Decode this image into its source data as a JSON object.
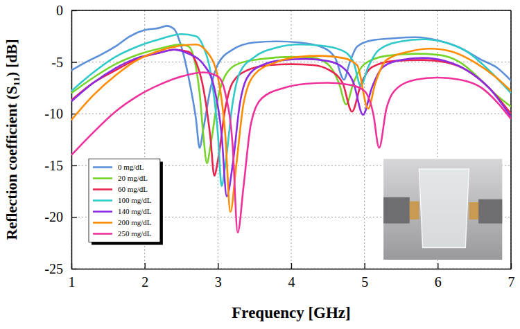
{
  "chart_data": {
    "type": "line",
    "x_label": "Frequency [GHz]",
    "y_label": "Reflection coefficient (S₁₁) [dB]",
    "xlim": [
      1,
      7
    ],
    "xticks": [
      1,
      2,
      3,
      4,
      5,
      6,
      7
    ],
    "ylim": [
      -25,
      0
    ],
    "yticks": [
      -25,
      -20,
      -15,
      -10,
      -5,
      0
    ],
    "grid": true,
    "legend": "lower left",
    "series": [
      {
        "name": "0 mg/dL",
        "color": "#5b8fd9",
        "x": [
          1.0,
          1.2,
          1.4,
          1.6,
          1.8,
          2.0,
          2.2,
          2.3,
          2.4,
          2.5,
          2.6,
          2.7,
          2.75,
          2.8,
          2.9,
          3.0,
          3.2,
          3.5,
          3.8,
          4.1,
          4.4,
          4.6,
          4.72,
          4.8,
          4.9,
          5.1,
          5.4,
          5.7,
          6.0,
          6.3,
          6.6,
          6.8,
          7.0
        ],
        "values": [
          -5.8,
          -5.0,
          -4.3,
          -3.5,
          -2.5,
          -1.9,
          -1.7,
          -1.5,
          -1.8,
          -3.5,
          -6.5,
          -10.5,
          -13.3,
          -11.5,
          -7.5,
          -5.2,
          -3.8,
          -3.1,
          -3.0,
          -3.1,
          -3.5,
          -4.6,
          -6.7,
          -5.0,
          -3.5,
          -2.9,
          -2.7,
          -2.6,
          -2.9,
          -3.6,
          -4.8,
          -5.5,
          -6.8
        ]
      },
      {
        "name": "20 mg/dL",
        "color": "#77d42a",
        "x": [
          1.0,
          1.3,
          1.6,
          1.9,
          2.2,
          2.5,
          2.6,
          2.7,
          2.75,
          2.8,
          2.85,
          2.9,
          3.0,
          3.1,
          3.3,
          3.6,
          4.0,
          4.3,
          4.5,
          4.65,
          4.75,
          4.85,
          5.0,
          5.3,
          5.7,
          6.0,
          6.3,
          6.6,
          6.8,
          7.0
        ],
        "values": [
          -8.0,
          -6.5,
          -5.2,
          -4.3,
          -3.7,
          -3.3,
          -3.5,
          -5.5,
          -8.0,
          -12.0,
          -14.8,
          -13.0,
          -8.5,
          -6.3,
          -5.1,
          -4.7,
          -4.5,
          -4.6,
          -5.2,
          -7.0,
          -9.1,
          -7.0,
          -5.2,
          -4.4,
          -4.2,
          -4.3,
          -5.0,
          -6.8,
          -8.2,
          -9.3
        ]
      },
      {
        "name": "60 mg/dL",
        "color": "#e8244f",
        "x": [
          1.0,
          1.3,
          1.6,
          1.9,
          2.2,
          2.4,
          2.6,
          2.7,
          2.8,
          2.9,
          2.95,
          3.0,
          3.1,
          3.2,
          3.4,
          3.7,
          4.0,
          4.3,
          4.5,
          4.7,
          4.83,
          4.95,
          5.1,
          5.4,
          5.8,
          6.1,
          6.4,
          6.7,
          7.0
        ],
        "values": [
          -8.7,
          -7.0,
          -5.8,
          -4.7,
          -4.1,
          -3.8,
          -4.0,
          -5.0,
          -7.5,
          -12.5,
          -16.0,
          -14.5,
          -9.5,
          -7.0,
          -5.8,
          -5.3,
          -5.2,
          -5.3,
          -5.7,
          -7.0,
          -9.8,
          -7.2,
          -5.5,
          -4.9,
          -4.8,
          -5.0,
          -5.8,
          -7.5,
          -10.0
        ]
      },
      {
        "name": "100 mg/dL",
        "color": "#2ec9c9",
        "x": [
          1.0,
          1.3,
          1.6,
          1.9,
          2.2,
          2.5,
          2.7,
          2.8,
          2.9,
          3.0,
          3.05,
          3.1,
          3.2,
          3.3,
          3.5,
          3.8,
          4.1,
          4.4,
          4.7,
          4.85,
          4.95,
          5.05,
          5.2,
          5.5,
          5.8,
          6.1,
          6.4,
          6.7,
          7.0
        ],
        "values": [
          -7.8,
          -6.0,
          -4.5,
          -3.5,
          -2.8,
          -2.3,
          -2.5,
          -3.5,
          -6.0,
          -12.0,
          -17.0,
          -15.0,
          -9.0,
          -6.0,
          -4.5,
          -3.6,
          -3.3,
          -3.4,
          -3.9,
          -5.0,
          -7.3,
          -5.5,
          -3.8,
          -3.0,
          -2.8,
          -3.1,
          -4.0,
          -5.8,
          -8.0
        ]
      },
      {
        "name": "140 mg/dL",
        "color": "#8b2be2",
        "x": [
          1.0,
          1.3,
          1.6,
          1.9,
          2.2,
          2.4,
          2.6,
          2.8,
          2.95,
          3.05,
          3.12,
          3.2,
          3.3,
          3.4,
          3.6,
          3.9,
          4.2,
          4.5,
          4.7,
          4.85,
          4.98,
          5.1,
          5.25,
          5.5,
          5.8,
          6.1,
          6.4,
          6.7,
          7.0
        ],
        "values": [
          -8.8,
          -7.0,
          -5.6,
          -4.6,
          -4.1,
          -3.8,
          -4.2,
          -5.2,
          -7.5,
          -12.0,
          -18.0,
          -15.0,
          -9.0,
          -6.5,
          -5.3,
          -4.8,
          -4.7,
          -4.9,
          -5.5,
          -7.0,
          -10.1,
          -7.5,
          -5.5,
          -4.8,
          -4.6,
          -4.9,
          -5.8,
          -7.5,
          -10.3
        ]
      },
      {
        "name": "200 mg/dL",
        "color": "#ff8c00",
        "x": [
          1.0,
          1.3,
          1.6,
          1.9,
          2.2,
          2.5,
          2.7,
          2.85,
          3.0,
          3.1,
          3.17,
          3.25,
          3.35,
          3.5,
          3.8,
          4.1,
          4.4,
          4.7,
          4.9,
          5.05,
          5.15,
          5.3,
          5.6,
          5.9,
          6.2,
          6.5,
          6.8,
          7.0
        ],
        "values": [
          -10.6,
          -8.2,
          -6.3,
          -4.8,
          -3.9,
          -3.4,
          -3.3,
          -4.0,
          -6.5,
          -12.0,
          -19.5,
          -15.0,
          -9.0,
          -6.2,
          -5.0,
          -4.5,
          -4.4,
          -4.6,
          -5.3,
          -9.5,
          -7.0,
          -4.8,
          -4.0,
          -3.7,
          -4.0,
          -5.0,
          -6.5,
          -7.8
        ]
      },
      {
        "name": "250 mg/dL",
        "color": "#f0309a",
        "x": [
          1.0,
          1.3,
          1.6,
          1.9,
          2.2,
          2.5,
          2.8,
          3.0,
          3.1,
          3.2,
          3.27,
          3.35,
          3.45,
          3.6,
          3.9,
          4.2,
          4.5,
          4.8,
          5.0,
          5.12,
          5.2,
          5.3,
          5.45,
          5.7,
          6.0,
          6.3,
          6.6,
          6.8,
          7.0
        ],
        "values": [
          -14.0,
          -11.8,
          -9.8,
          -8.3,
          -7.2,
          -6.4,
          -6.0,
          -6.4,
          -8.0,
          -13.0,
          -21.5,
          -17.0,
          -11.0,
          -8.5,
          -7.5,
          -7.1,
          -7.0,
          -7.2,
          -7.8,
          -10.0,
          -13.3,
          -9.5,
          -7.5,
          -6.7,
          -6.5,
          -6.7,
          -7.5,
          -8.8,
          -10.5
        ]
      }
    ]
  }
}
